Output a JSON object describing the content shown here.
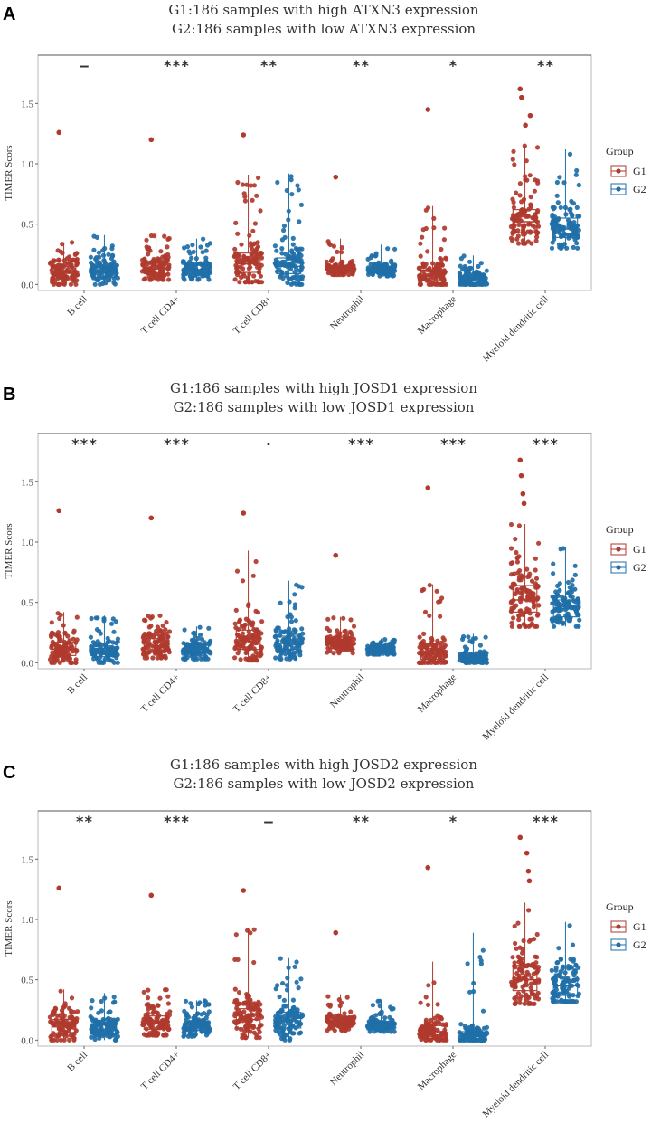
{
  "colors": {
    "G1": "#B03A2E",
    "G2": "#1F6FA8"
  },
  "legend": {
    "title": "Group",
    "labels": [
      "G1",
      "G2"
    ]
  },
  "chart_data": [
    {
      "panel": "A",
      "type": "box-jitter",
      "title_lines": [
        "G1:186 samples with high ATXN3 expression",
        "G2:186 samples with low ATXN3 expression"
      ],
      "ylabel": "TIMER Scors",
      "ylim": [
        -0.05,
        1.9
      ],
      "yticks": [
        0.0,
        0.5,
        1.0,
        1.5
      ],
      "categories": [
        "B cell",
        "T cell CD4+",
        "T cell CD8+",
        "Neutrophil",
        "Macrophage",
        "Myeloid dendritic cell"
      ],
      "significance": [
        "—",
        "***",
        "**",
        "**",
        "*",
        "**"
      ],
      "series": [
        {
          "name": "G1",
          "medians": [
            0.1,
            0.13,
            0.17,
            0.13,
            0.07,
            0.52
          ],
          "q1": [
            0.05,
            0.09,
            0.1,
            0.11,
            0.03,
            0.43
          ],
          "q3": [
            0.15,
            0.18,
            0.26,
            0.15,
            0.12,
            0.62
          ],
          "min": [
            0.0,
            0.04,
            0.02,
            0.08,
            0.0,
            0.34
          ],
          "max": [
            0.35,
            0.42,
            0.91,
            0.38,
            0.65,
            1.15
          ],
          "outliers": [
            1.26,
            1.2,
            1.24,
            0.89,
            1.45,
            1.62
          ]
        },
        {
          "name": "G2",
          "medians": [
            0.1,
            0.12,
            0.15,
            0.12,
            0.03,
            0.46
          ],
          "q1": [
            0.06,
            0.09,
            0.09,
            0.1,
            0.01,
            0.39
          ],
          "q3": [
            0.14,
            0.16,
            0.22,
            0.14,
            0.07,
            0.55
          ],
          "min": [
            0.0,
            0.04,
            0.0,
            0.07,
            0.0,
            0.3
          ],
          "max": [
            0.41,
            0.38,
            0.92,
            0.33,
            0.24,
            1.12
          ],
          "outliers": []
        }
      ]
    },
    {
      "panel": "B",
      "type": "box-jitter",
      "title_lines": [
        "G1:186 samples with high JOSD1 expression",
        "G2:186 samples with low  JOSD1 expression"
      ],
      "ylabel": "TIMER Scors",
      "ylim": [
        -0.05,
        1.9
      ],
      "yticks": [
        0.0,
        0.5,
        1.0,
        1.5
      ],
      "categories": [
        "B cell",
        "T cell CD4+",
        "T cell CD8+",
        "Neutrophil",
        "Macrophage",
        "Myeloid dendritic cell"
      ],
      "significance": [
        "***",
        "***",
        "·",
        "***",
        "***",
        "***"
      ],
      "series": [
        {
          "name": "G1",
          "medians": [
            0.11,
            0.14,
            0.18,
            0.15,
            0.07,
            0.52
          ],
          "q1": [
            0.06,
            0.09,
            0.11,
            0.12,
            0.03,
            0.42
          ],
          "q3": [
            0.17,
            0.2,
            0.27,
            0.18,
            0.12,
            0.64
          ],
          "min": [
            0.0,
            0.04,
            0.02,
            0.08,
            0.0,
            0.3
          ],
          "max": [
            0.42,
            0.42,
            0.93,
            0.38,
            0.65,
            1.15
          ],
          "outliers": [
            1.26,
            1.2,
            1.24,
            0.89,
            1.45,
            1.68
          ]
        },
        {
          "name": "G2",
          "medians": [
            0.08,
            0.11,
            0.16,
            0.11,
            0.03,
            0.45
          ],
          "q1": [
            0.05,
            0.08,
            0.11,
            0.09,
            0.01,
            0.38
          ],
          "q3": [
            0.12,
            0.15,
            0.22,
            0.13,
            0.06,
            0.52
          ],
          "min": [
            0.0,
            0.03,
            0.03,
            0.07,
            0.0,
            0.3
          ],
          "max": [
            0.39,
            0.3,
            0.68,
            0.2,
            0.24,
            0.96
          ],
          "outliers": []
        }
      ]
    },
    {
      "panel": "C",
      "type": "box-jitter",
      "title_lines": [
        "G1:186 samples with high JOSD2 expression",
        "G2:186 samples with low  JOSD2 expression"
      ],
      "ylabel": "TIMER Scors",
      "ylim": [
        -0.05,
        1.9
      ],
      "yticks": [
        0.0,
        0.5,
        1.0,
        1.5
      ],
      "categories": [
        "B cell",
        "T cell CD4+",
        "T cell CD8+",
        "Neutrophil",
        "Macrophage",
        "Myeloid dendritic cell"
      ],
      "significance": [
        "**",
        "***",
        "—",
        "**",
        "*",
        "***"
      ],
      "series": [
        {
          "name": "G1",
          "medians": [
            0.11,
            0.14,
            0.17,
            0.14,
            0.07,
            0.5
          ],
          "q1": [
            0.06,
            0.09,
            0.1,
            0.11,
            0.03,
            0.41
          ],
          "q3": [
            0.17,
            0.2,
            0.26,
            0.16,
            0.12,
            0.62
          ],
          "min": [
            0.0,
            0.04,
            0.02,
            0.08,
            0.0,
            0.3
          ],
          "max": [
            0.42,
            0.42,
            0.93,
            0.38,
            0.65,
            1.14
          ],
          "outliers": [
            1.26,
            1.2,
            1.24,
            0.89,
            1.43,
            1.68
          ]
        },
        {
          "name": "G2",
          "medians": [
            0.09,
            0.11,
            0.16,
            0.12,
            0.03,
            0.45
          ],
          "q1": [
            0.05,
            0.08,
            0.1,
            0.1,
            0.01,
            0.37
          ],
          "q3": [
            0.13,
            0.15,
            0.23,
            0.14,
            0.07,
            0.53
          ],
          "min": [
            0.0,
            0.03,
            0.0,
            0.07,
            0.0,
            0.32
          ],
          "max": [
            0.39,
            0.33,
            0.68,
            0.33,
            0.89,
            0.98
          ],
          "outliers": []
        }
      ]
    }
  ]
}
